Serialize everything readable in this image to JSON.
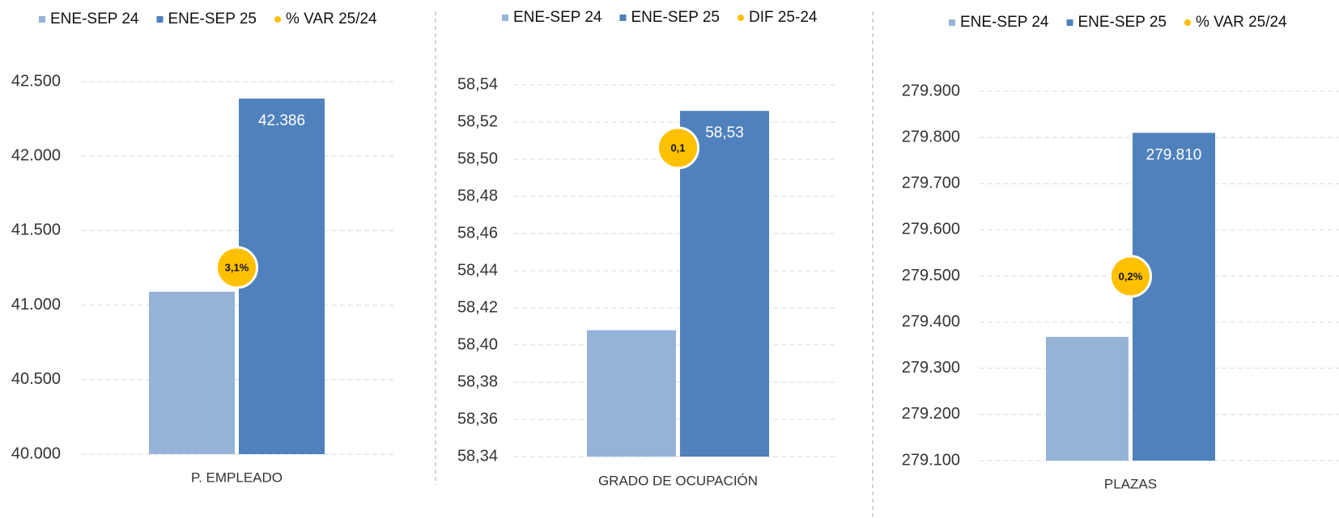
{
  "chart_data": [
    {
      "type": "bar",
      "categories": [
        "P. EMPLEADO"
      ],
      "series": [
        {
          "name": "ENE-SEP 24",
          "color": "#95b3d7",
          "values": [
            41090
          ]
        },
        {
          "name": "ENE-SEP 25",
          "color": "#4f81bd",
          "values": [
            42386
          ],
          "value_labels": [
            "42.386"
          ]
        },
        {
          "name": "% VAR 25/24",
          "color": "#ffc000",
          "values": [
            3.1
          ],
          "value_labels": [
            "3,1%"
          ]
        }
      ],
      "ylim": [
        40000,
        42500
      ],
      "yticks": [
        {
          "value": 40000,
          "label": "40.000"
        },
        {
          "value": 40500,
          "label": "40.500"
        },
        {
          "value": 41000,
          "label": "41.000"
        },
        {
          "value": 41500,
          "label": "41.500"
        },
        {
          "value": 42000,
          "label": "42.000"
        },
        {
          "value": 42500,
          "label": "42.500"
        }
      ],
      "grid": true
    },
    {
      "type": "bar",
      "categories": [
        "GRADO DE OCUPACIÓN"
      ],
      "series": [
        {
          "name": "ENE-SEP 24",
          "color": "#95b3d7",
          "values": [
            58.408
          ]
        },
        {
          "name": "ENE-SEP 25",
          "color": "#4f81bd",
          "values": [
            58.526
          ],
          "value_labels": [
            "58,53"
          ]
        },
        {
          "name": "DIF 25-24",
          "color": "#ffc000",
          "values": [
            0.1
          ],
          "value_labels": [
            "0,1"
          ]
        }
      ],
      "ylim": [
        58.34,
        58.54
      ],
      "yticks": [
        {
          "value": 58.34,
          "label": "58,34"
        },
        {
          "value": 58.36,
          "label": "58,36"
        },
        {
          "value": 58.38,
          "label": "58,38"
        },
        {
          "value": 58.4,
          "label": "58,40"
        },
        {
          "value": 58.42,
          "label": "58,42"
        },
        {
          "value": 58.44,
          "label": "58,44"
        },
        {
          "value": 58.46,
          "label": "58,46"
        },
        {
          "value": 58.48,
          "label": "58,48"
        },
        {
          "value": 58.5,
          "label": "58,50"
        },
        {
          "value": 58.52,
          "label": "58,52"
        },
        {
          "value": 58.54,
          "label": "58,54"
        }
      ],
      "grid": true
    },
    {
      "type": "bar",
      "categories": [
        "PLAZAS"
      ],
      "series": [
        {
          "name": "ENE-SEP 24",
          "color": "#95b3d7",
          "values": [
            279368
          ]
        },
        {
          "name": "ENE-SEP 25",
          "color": "#4f81bd",
          "values": [
            279810
          ],
          "value_labels": [
            "279.810"
          ]
        },
        {
          "name": "% VAR 25/24",
          "color": "#ffc000",
          "values": [
            0.2
          ],
          "value_labels": [
            "0,2%"
          ]
        }
      ],
      "ylim": [
        279100,
        279900
      ],
      "yticks": [
        {
          "value": 279100,
          "label": "279.100"
        },
        {
          "value": 279200,
          "label": "279.200"
        },
        {
          "value": 279300,
          "label": "279.300"
        },
        {
          "value": 279400,
          "label": "279.400"
        },
        {
          "value": 279500,
          "label": "279.500"
        },
        {
          "value": 279600,
          "label": "279.600"
        },
        {
          "value": 279700,
          "label": "279.700"
        },
        {
          "value": 279800,
          "label": "279.800"
        },
        {
          "value": 279900,
          "label": "279.900"
        }
      ],
      "grid": true
    }
  ]
}
